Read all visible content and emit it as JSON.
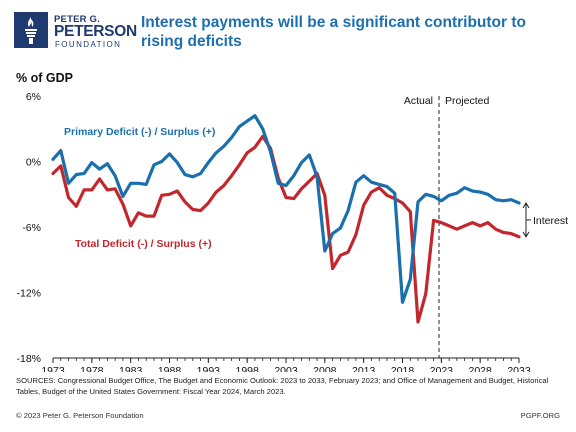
{
  "header": {
    "logo_line1": "PETER G.",
    "logo_line2": "PETERSON",
    "logo_line3": "FOUNDATION",
    "title": "Interest payments will be a significant contributor to rising deficits"
  },
  "chart_data": {
    "type": "line",
    "title": "Interest payments will be a significant contributor to rising deficits",
    "ylabel": "% of GDP",
    "ylim": [
      -18,
      6
    ],
    "yticks": [
      6,
      0,
      -6,
      -12,
      -18
    ],
    "ytick_labels": [
      "6%",
      "0%",
      "-6%",
      "-12%",
      "-18%"
    ],
    "xlim": [
      1973,
      2033
    ],
    "xticks": [
      1973,
      1978,
      1983,
      1988,
      1993,
      1998,
      2003,
      2008,
      2013,
      2018,
      2023,
      2028,
      2033
    ],
    "grid": false,
    "split_year": 2022,
    "split_labels": {
      "left": "Actual",
      "right": "Projected"
    },
    "bracket_label": "Interest",
    "x": [
      1973,
      1974,
      1975,
      1976,
      1977,
      1978,
      1979,
      1980,
      1981,
      1982,
      1983,
      1984,
      1985,
      1986,
      1987,
      1988,
      1989,
      1990,
      1991,
      1992,
      1993,
      1994,
      1995,
      1996,
      1997,
      1998,
      1999,
      2000,
      2001,
      2002,
      2003,
      2004,
      2005,
      2006,
      2007,
      2008,
      2009,
      2010,
      2011,
      2012,
      2013,
      2014,
      2015,
      2016,
      2017,
      2018,
      2019,
      2020,
      2021,
      2022,
      2023,
      2024,
      2025,
      2026,
      2027,
      2028,
      2029,
      2030,
      2031,
      2032,
      2033
    ],
    "series": [
      {
        "name": "Primary Deficit (-) / Surplus (+)",
        "color": "#1a6fad",
        "values": [
          0.2,
          1.0,
          -2.0,
          -1.2,
          -1.1,
          -0.1,
          -0.7,
          -0.2,
          -1.3,
          -3.2,
          -2.0,
          -2.0,
          -2.1,
          -0.3,
          0.0,
          0.7,
          -0.1,
          -1.2,
          -1.4,
          -1.1,
          -0.1,
          0.8,
          1.4,
          2.2,
          3.2,
          3.7,
          4.2,
          3.0,
          0.9,
          -2.0,
          -2.2,
          -1.3,
          -0.1,
          0.6,
          -1.4,
          -8.2,
          -6.6,
          -6.1,
          -4.5,
          -1.9,
          -1.3,
          -1.9,
          -2.1,
          -2.3,
          -2.9,
          -12.9,
          -10.8,
          -3.7,
          -3.0,
          -3.2,
          -3.6,
          -3.1,
          -2.9,
          -2.4,
          -2.7,
          -2.8,
          -3.0,
          -3.5,
          -3.6,
          -3.5,
          -3.8
        ]
      },
      {
        "name": "Total Deficit (-) / Surplus (+)",
        "color": "#c1272d",
        "values": [
          -1.1,
          -0.4,
          -3.3,
          -4.1,
          -2.6,
          -2.6,
          -1.6,
          -2.6,
          -2.5,
          -3.9,
          -5.9,
          -4.7,
          -5.0,
          -5.0,
          -3.1,
          -3.0,
          -2.7,
          -3.7,
          -4.4,
          -4.5,
          -3.8,
          -2.8,
          -2.2,
          -1.3,
          -0.3,
          0.8,
          1.3,
          2.3,
          1.2,
          -1.5,
          -3.3,
          -3.4,
          -2.5,
          -1.8,
          -1.1,
          -3.1,
          -9.8,
          -8.6,
          -8.3,
          -6.7,
          -4.0,
          -2.8,
          -2.4,
          -3.1,
          -3.4,
          -3.8,
          -4.6,
          -14.7,
          -12.1,
          -5.4,
          -5.6,
          -5.9,
          -6.2,
          -5.9,
          -5.6,
          -5.9,
          -5.6,
          -6.2,
          -6.5,
          -6.6,
          -6.9
        ]
      }
    ],
    "series_labels": [
      {
        "text": "Primary Deficit (-) / Surplus (+)",
        "color": "#1a6fad"
      },
      {
        "text": "Total Deficit (-) / Surplus (+)",
        "color": "#c1272d"
      }
    ]
  },
  "footer": {
    "sources": "SOURCES: Congressional Budget Office, The Budget and Economic Outlook: 2023 to 2033, February 2023; and Office of Management and Budget, Historical Tables, Budget of the United States Government: Fiscal Year 2024, March 2023.",
    "copyright": "© 2023 Peter G. Peterson Foundation",
    "site": "PGPF.ORG"
  }
}
